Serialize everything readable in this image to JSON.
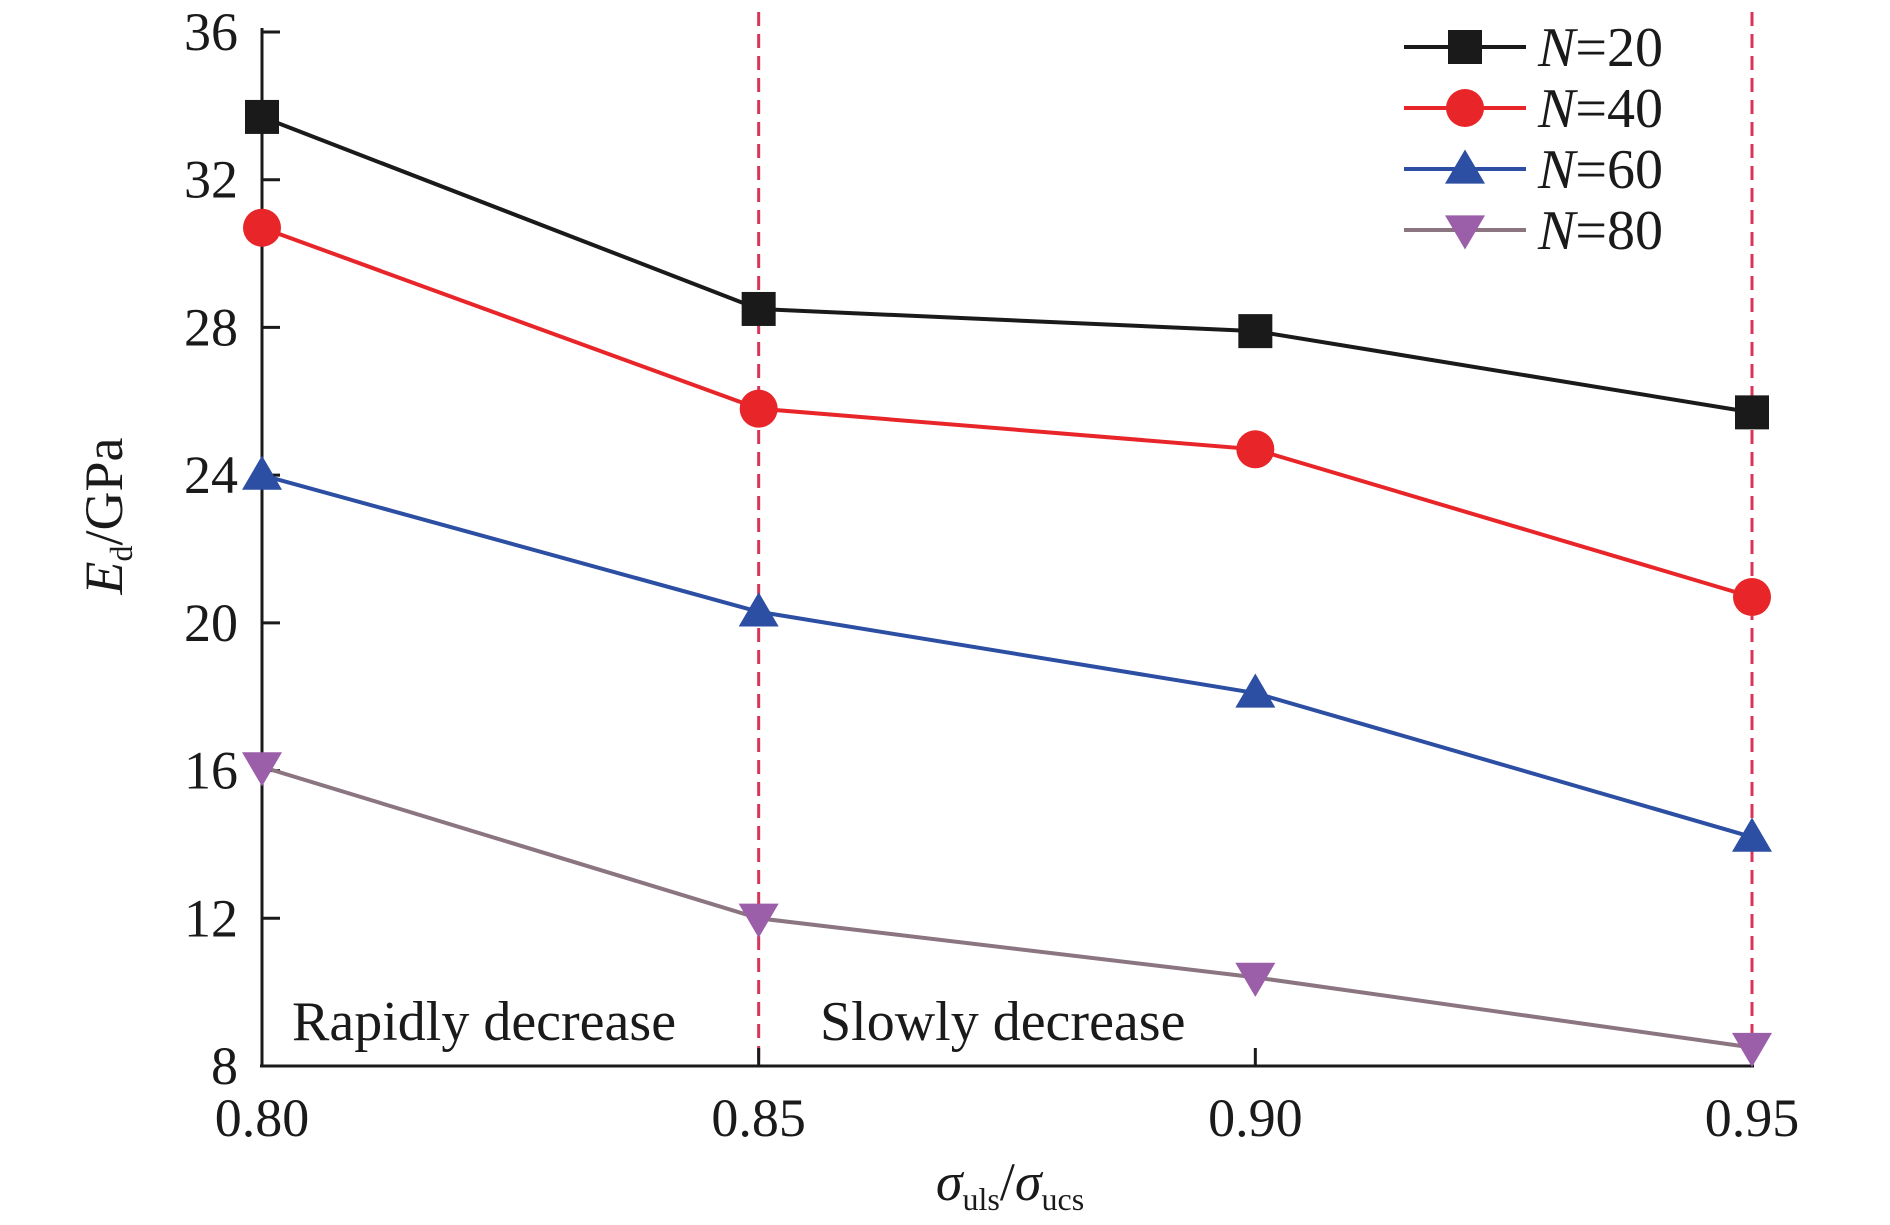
{
  "chart_data": {
    "type": "line",
    "x": [
      0.8,
      0.85,
      0.9,
      0.95
    ],
    "x_tick_labels": [
      "0.80",
      "0.85",
      "0.90",
      "0.95"
    ],
    "xlim": [
      0.8,
      0.95
    ],
    "ylim": [
      8,
      36
    ],
    "y_ticks": [
      8,
      12,
      16,
      20,
      24,
      28,
      32,
      36
    ],
    "y_tick_labels": [
      "8",
      "12",
      "16",
      "20",
      "24",
      "28",
      "32",
      "36"
    ],
    "xlabel": {
      "symbol1": "σ",
      "sub1": "uls",
      "slash": "/",
      "symbol2": "σ",
      "sub2": "ucs"
    },
    "ylabel": {
      "symbol": "E",
      "sub": "d",
      "unit": "/GPa"
    },
    "series": [
      {
        "name_var": "N",
        "name_rest": "=20",
        "marker": "square",
        "color": "#1a1a1a",
        "values": [
          33.7,
          28.5,
          27.9,
          25.7
        ]
      },
      {
        "name_var": "N",
        "name_rest": "=40",
        "marker": "circle",
        "color": "#e8262a",
        "values": [
          30.7,
          25.8,
          24.7,
          20.7
        ]
      },
      {
        "name_var": "N",
        "name_rest": "=60",
        "marker": "triangle-up",
        "color": "#2c4fa3",
        "values": [
          24.0,
          20.3,
          18.1,
          14.2
        ]
      },
      {
        "name_var": "N",
        "name_rest": "=80",
        "marker": "triangle-down",
        "color": "#9b5ea8",
        "line_color": "#8a7580",
        "values": [
          16.1,
          12.0,
          10.4,
          8.5
        ]
      }
    ],
    "reference_lines": [
      {
        "x": 0.85,
        "style": "dashed",
        "color": "#d9345a"
      },
      {
        "x": 0.95,
        "style": "dashed",
        "color": "#d9345a"
      }
    ],
    "annotations": [
      {
        "text": "Rapidly decrease"
      },
      {
        "text": "Slowly decrease"
      }
    ],
    "legend_position": "top-right",
    "grid": false
  }
}
